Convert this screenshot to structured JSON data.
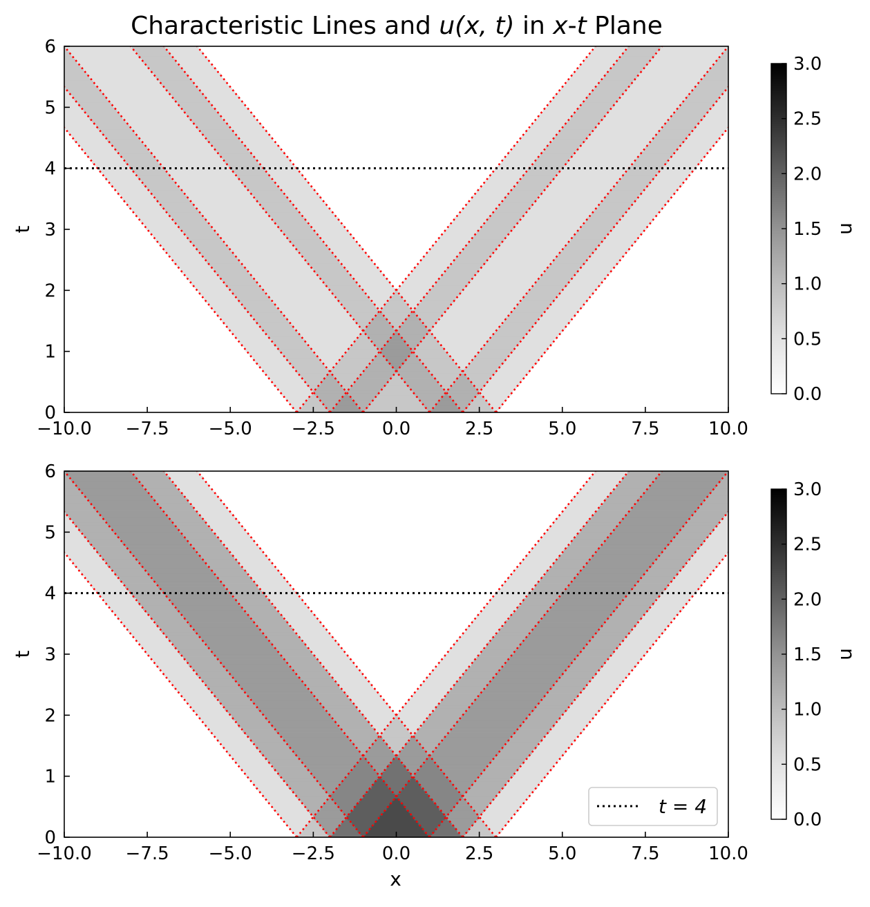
{
  "chart_data": [
    {
      "type": "heatmap",
      "title": "Characteristic Lines and u(x, t) in x-t Plane",
      "title_parts": {
        "p1": "Characteristic Lines and ",
        "m1": "u(x, t)",
        "p2": " in ",
        "m2": "x",
        "p3": "-",
        "m3": "t",
        "p4": " Plane"
      },
      "xlabel": "",
      "ylabel": "t",
      "xlim": [
        -10,
        10
      ],
      "ylim": [
        0,
        6
      ],
      "x_ticks": [
        "−10.0",
        "−7.5",
        "−5.0",
        "−2.5",
        "0.0",
        "2.5",
        "5.0",
        "7.5",
        "10.0"
      ],
      "x_tick_values": [
        -10,
        -7.5,
        -5,
        -2.5,
        0,
        2.5,
        5,
        7.5,
        10
      ],
      "y_ticks": [
        "0",
        "1",
        "2",
        "3",
        "4",
        "5",
        "6"
      ],
      "y_tick_values": [
        0,
        1,
        2,
        3,
        4,
        5,
        6
      ],
      "colorbar": {
        "label": "u",
        "range": [
          0,
          3
        ],
        "colormap": "Greys",
        "ticks": [
          "0.0",
          "0.5",
          "1.0",
          "1.5",
          "2.0",
          "2.5",
          "3.0"
        ],
        "tick_values": [
          0,
          0.5,
          1,
          1.5,
          2,
          2.5,
          3
        ]
      },
      "initial_pulses": [
        {
          "x0": -3,
          "x1": -1,
          "amplitude": 0.5
        },
        {
          "x0": -2,
          "x1": 2,
          "amplitude": 0.5
        },
        {
          "x0": 1,
          "x1": 3,
          "amplitude": 0.5
        }
      ],
      "wave_speed": 1.5,
      "characteristics_x0": [
        -3,
        -2,
        -1,
        1,
        2,
        3
      ],
      "characteristic_color": "#ff0000",
      "time_line": 4,
      "legend": null
    },
    {
      "type": "heatmap",
      "title": "",
      "xlabel": "x",
      "ylabel": "t",
      "xlim": [
        -10,
        10
      ],
      "ylim": [
        0,
        6
      ],
      "x_ticks": [
        "−10.0",
        "−7.5",
        "−5.0",
        "−2.5",
        "0.0",
        "2.5",
        "5.0",
        "7.5",
        "10.0"
      ],
      "x_tick_values": [
        -10,
        -7.5,
        -5,
        -2.5,
        0,
        2.5,
        5,
        7.5,
        10
      ],
      "y_ticks": [
        "0",
        "1",
        "2",
        "3",
        "4",
        "5",
        "6"
      ],
      "y_tick_values": [
        0,
        1,
        2,
        3,
        4,
        5,
        6
      ],
      "colorbar": {
        "label": "u",
        "range": [
          0,
          3
        ],
        "colormap": "Greys",
        "ticks": [
          "0.0",
          "0.5",
          "1.0",
          "1.5",
          "2.0",
          "2.5",
          "3.0"
        ],
        "tick_values": [
          0,
          0.5,
          1,
          1.5,
          2,
          2.5,
          3
        ]
      },
      "initial_pulses": [
        {
          "x0": -3,
          "x1": -1,
          "amplitude": 0.5
        },
        {
          "x0": -2,
          "x1": 2,
          "amplitude": 1.0
        },
        {
          "x0": -1,
          "x1": 1,
          "amplitude": 1.0
        },
        {
          "x0": 1,
          "x1": 3,
          "amplitude": 0.5
        }
      ],
      "wave_speed": 1.5,
      "characteristics_x0": [
        -3,
        -2,
        -1,
        1,
        2,
        3
      ],
      "characteristic_color": "#ff0000",
      "time_line": 4,
      "legend": {
        "text": "t = 4",
        "placement": "lower-right"
      }
    }
  ]
}
